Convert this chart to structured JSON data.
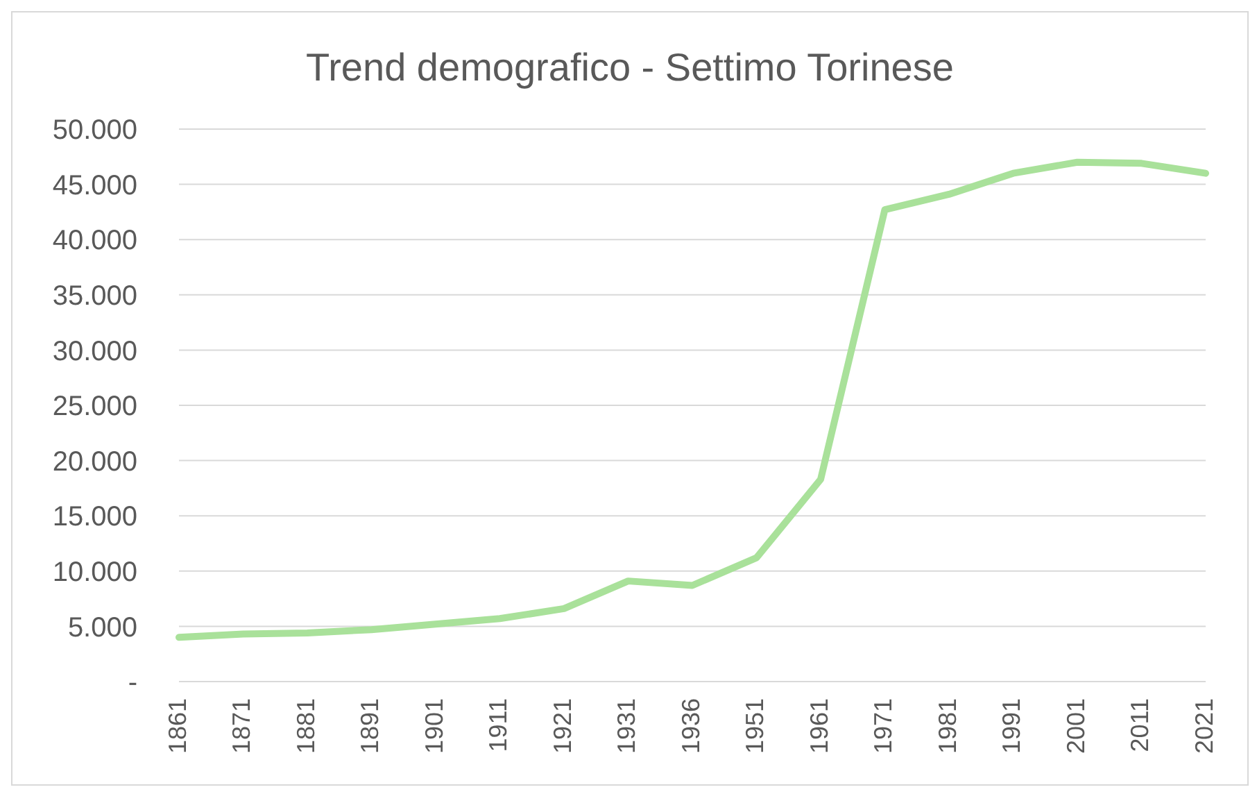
{
  "chart_data": {
    "type": "line",
    "title": "Trend demografico - Settimo Torinese",
    "categories": [
      "1861",
      "1871",
      "1881",
      "1891",
      "1901",
      "1911",
      "1921",
      "1931",
      "1936",
      "1951",
      "1961",
      "1971",
      "1981",
      "1991",
      "2001",
      "2011",
      "2021"
    ],
    "series": [
      {
        "color": "#a9e19a",
        "values": [
          4000,
          4300,
          4400,
          4700,
          5200,
          5700,
          6600,
          9100,
          8700,
          11200,
          18300,
          42700,
          44100,
          46000,
          47000,
          46900,
          46000
        ]
      }
    ],
    "ylim": [
      0,
      50000
    ],
    "yticks": [
      {
        "value": 0,
        "label": "-"
      },
      {
        "value": 5000,
        "label": "5.000"
      },
      {
        "value": 10000,
        "label": "10.000"
      },
      {
        "value": 15000,
        "label": "15.000"
      },
      {
        "value": 20000,
        "label": "20.000"
      },
      {
        "value": 25000,
        "label": "25.000"
      },
      {
        "value": 30000,
        "label": "30.000"
      },
      {
        "value": 35000,
        "label": "35.000"
      },
      {
        "value": 40000,
        "label": "40.000"
      },
      {
        "value": 45000,
        "label": "45.000"
      },
      {
        "value": 50000,
        "label": "50.000"
      }
    ],
    "grid": "y",
    "marker": "none",
    "line_style": "solid"
  }
}
